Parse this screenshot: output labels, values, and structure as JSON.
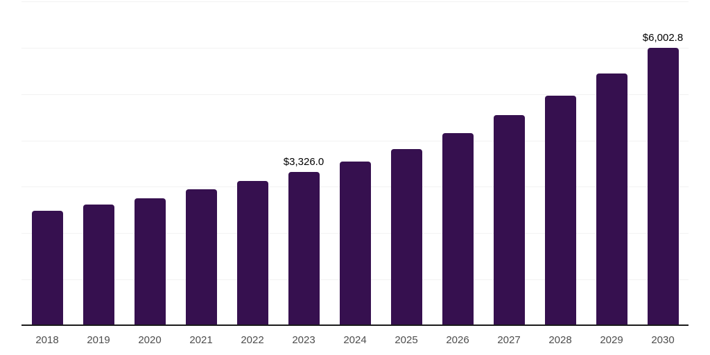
{
  "chart_data": {
    "type": "bar",
    "title": "",
    "xlabel": "",
    "ylabel": "",
    "categories": [
      "2018",
      "2019",
      "2020",
      "2021",
      "2022",
      "2023",
      "2024",
      "2025",
      "2026",
      "2027",
      "2028",
      "2029",
      "2030"
    ],
    "values": [
      2480,
      2615,
      2750,
      2940,
      3120,
      3326.0,
      3540,
      3810,
      4165,
      4540,
      4960,
      5450,
      6002.8
    ],
    "point_labels": [
      null,
      null,
      null,
      null,
      null,
      "$3,326.0",
      null,
      null,
      null,
      null,
      null,
      null,
      "$6,002.8"
    ],
    "ylim": [
      0,
      7000
    ],
    "gridline_interval": 1000,
    "grid": true,
    "legend": false,
    "y_axis_labels_visible": false,
    "colors": {
      "bar": "#36104F",
      "gridline": "#f2f2f2",
      "axis_line": "#1a1a1a",
      "tick_label": "#4d4d4d",
      "point_label": "#000000",
      "background": "#ffffff"
    }
  }
}
